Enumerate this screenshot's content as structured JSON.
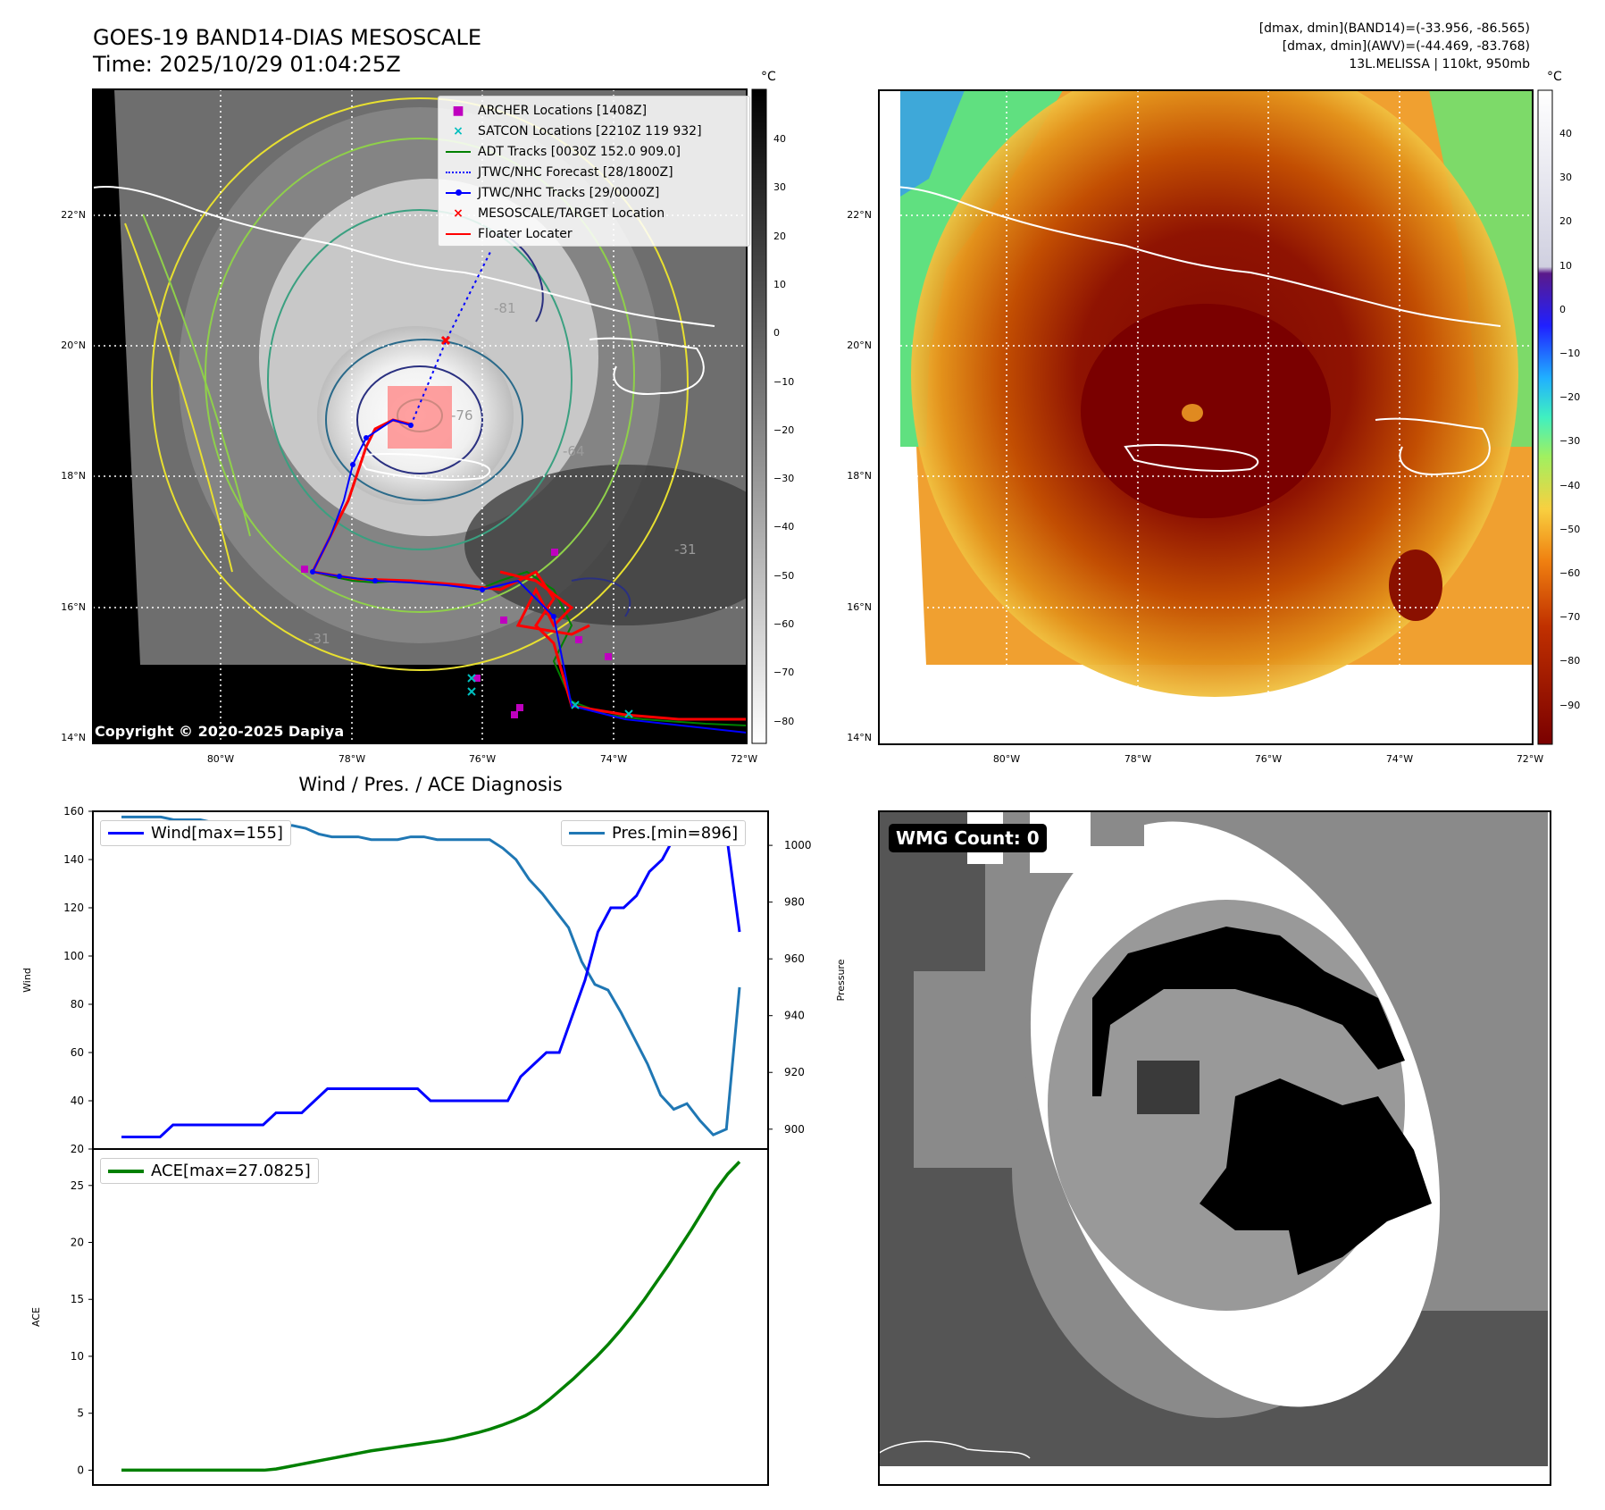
{
  "panel1": {
    "title_line1": "GOES-19 BAND14-DIAS MESOSCALE",
    "title_line2": "Time: 2025/10/29 01:04:25Z",
    "unit": "°C",
    "colorbar_ticks": [
      "40",
      "30",
      "20",
      "10",
      "0",
      "−10",
      "−20",
      "−30",
      "−40",
      "−50",
      "−60",
      "−70",
      "−80"
    ],
    "lat_labels": [
      "22°N",
      "20°N",
      "18°N",
      "16°N",
      "14°N"
    ],
    "lon_labels": [
      "80°W",
      "78°W",
      "76°W",
      "74°W",
      "72°W"
    ],
    "copyright": "Copyright © 2020-2025 Dapiya",
    "contour_labels": [
      "-31",
      "-64",
      "-76",
      "-81"
    ],
    "legend": [
      {
        "label": "ARCHER Locations [1408Z]",
        "marker": "square",
        "color": "#bf00bf"
      },
      {
        "label": "SATCON Locations [2210Z 119 932]",
        "marker": "x",
        "color": "#00bfbf"
      },
      {
        "label": "ADT Tracks [0030Z 152.0 909.0]",
        "marker": "line",
        "color": "#008000"
      },
      {
        "label": "JTWC/NHC Forecast [28/1800Z]",
        "marker": "dotted",
        "color": "#0000ff"
      },
      {
        "label": "JTWC/NHC Tracks [29/0000Z]",
        "marker": "line-dot",
        "color": "#0000ff"
      },
      {
        "label": "MESOSCALE/TARGET Location",
        "marker": "x",
        "color": "#ff0000"
      },
      {
        "label": "Floater Locater",
        "marker": "line",
        "color": "#ff0000"
      }
    ]
  },
  "panel2": {
    "info_line1": "[dmax, dmin](BAND14)=(-33.956, -86.565)",
    "info_line2": "[dmax, dmin](AWV)=(-44.469, -83.768)",
    "info_line3": "13L.MELISSA | 110kt, 950mb",
    "unit": "°C",
    "colorbar_ticks": [
      "40",
      "30",
      "20",
      "10",
      "0",
      "−10",
      "−20",
      "−30",
      "−40",
      "−50",
      "−60",
      "−70",
      "−80",
      "−90"
    ],
    "lat_labels": [
      "22°N",
      "20°N",
      "18°N",
      "16°N",
      "14°N"
    ],
    "lon_labels": [
      "80°W",
      "78°W",
      "76°W",
      "74°W",
      "72°W"
    ]
  },
  "panel3": {
    "title": "Wind / Pres. / ACE Diagnosis",
    "wind_axis_label": "Wind",
    "pres_axis_label": "Pressure",
    "ace_axis_label": "ACE",
    "wind_legend": "Wind[max=155]",
    "pres_legend": "Pres.[min=896]",
    "ace_legend": "ACE[max=27.0825]",
    "wind_ticks": [
      "160",
      "140",
      "120",
      "100",
      "80",
      "60",
      "40",
      "20"
    ],
    "pres_ticks": [
      "1000",
      "980",
      "960",
      "940",
      "920",
      "900"
    ],
    "ace_ticks": [
      "25",
      "20",
      "15",
      "10",
      "5",
      "0"
    ]
  },
  "panel4": {
    "label": "WMG Count: 0"
  },
  "colors": {
    "wind": "#0000ff",
    "pressure": "#1f77b4",
    "ace": "#008000"
  },
  "chart_data": [
    {
      "type": "line",
      "title": "Wind / Pres. / ACE Diagnosis",
      "ylabel": "Wind",
      "ylim": [
        20,
        160
      ],
      "series": [
        {
          "name": "Wind[max=155]",
          "values": [
            25,
            25,
            25,
            25,
            30,
            30,
            30,
            30,
            30,
            30,
            30,
            30,
            35,
            35,
            35,
            40,
            45,
            45,
            45,
            45,
            45,
            45,
            45,
            45,
            40,
            40,
            40,
            40,
            40,
            40,
            40,
            50,
            55,
            60,
            60,
            75,
            90,
            110,
            120,
            120,
            125,
            135,
            140,
            150,
            150,
            150,
            155,
            150,
            110
          ]
        }
      ]
    },
    {
      "type": "line",
      "ylabel": "Pressure",
      "ylim": [
        893,
        1012
      ],
      "series": [
        {
          "name": "Pres.[min=896]",
          "values": [
            1010,
            1010,
            1010,
            1010,
            1009,
            1009,
            1009,
            1008,
            1008,
            1008,
            1008,
            1008,
            1007,
            1007,
            1006,
            1004,
            1003,
            1003,
            1003,
            1002,
            1002,
            1002,
            1003,
            1003,
            1002,
            1002,
            1002,
            1002,
            1002,
            999,
            995,
            988,
            983,
            977,
            971,
            959,
            951,
            949,
            941,
            932,
            923,
            912,
            907,
            909,
            903,
            898,
            900,
            950
          ]
        }
      ]
    },
    {
      "type": "line",
      "ylabel": "ACE",
      "ylim": [
        -1.3,
        28.2
      ],
      "series": [
        {
          "name": "ACE[max=27.0825]",
          "values": [
            0,
            0,
            0,
            0,
            0,
            0,
            0,
            0,
            0,
            0,
            0,
            0,
            0,
            0.1,
            0.3,
            0.5,
            0.7,
            0.9,
            1.1,
            1.3,
            1.5,
            1.7,
            1.85,
            2.0,
            2.15,
            2.3,
            2.45,
            2.6,
            2.8,
            3.05,
            3.3,
            3.6,
            3.95,
            4.35,
            4.8,
            5.4,
            6.2,
            7.1,
            8.0,
            9.0,
            10.0,
            11.1,
            12.3,
            13.6,
            15.0,
            16.5,
            18.0,
            19.6,
            21.2,
            22.9,
            24.6,
            26.0,
            27.0825
          ]
        }
      ]
    }
  ]
}
